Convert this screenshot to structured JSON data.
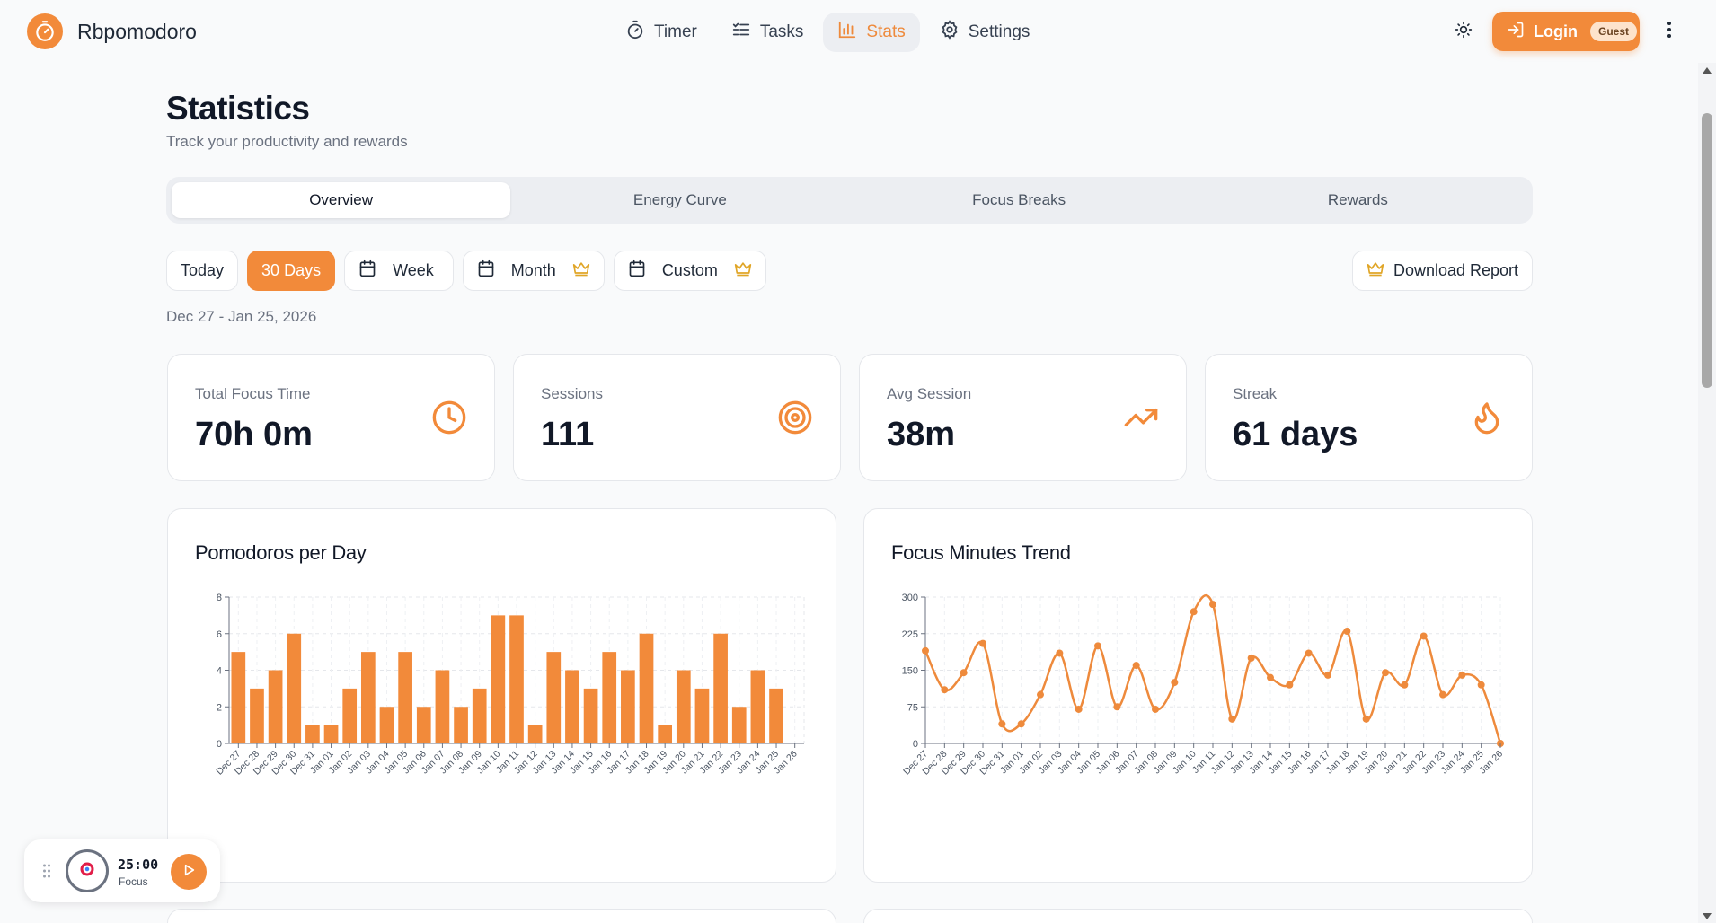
{
  "app": {
    "name": "Rbpomodoro"
  },
  "nav": {
    "items": [
      {
        "label": "Timer",
        "icon": "stopwatch-icon",
        "active": false
      },
      {
        "label": "Tasks",
        "icon": "list-check-icon",
        "active": false
      },
      {
        "label": "Stats",
        "icon": "bar-chart-icon",
        "active": true
      },
      {
        "label": "Settings",
        "icon": "gear-icon",
        "active": false
      }
    ],
    "login_label": "Login",
    "guest_badge": "Guest"
  },
  "page": {
    "title": "Statistics",
    "subtitle": "Track your productivity and rewards"
  },
  "tabs": [
    {
      "label": "Overview",
      "active": true
    },
    {
      "label": "Energy Curve",
      "active": false
    },
    {
      "label": "Focus Breaks",
      "active": false
    },
    {
      "label": "Rewards",
      "active": false
    }
  ],
  "ranges": {
    "today": "Today",
    "thirty_days": "30 Days",
    "week": "Week",
    "month": "Month",
    "custom": "Custom",
    "selected": "30 Days"
  },
  "download_label": "Download Report",
  "date_range": "Dec 27 - Jan 25, 2026",
  "stats": [
    {
      "label": "Total Focus Time",
      "value": "70h 0m",
      "icon": "clock-icon"
    },
    {
      "label": "Sessions",
      "value": "111",
      "icon": "target-icon"
    },
    {
      "label": "Avg Session",
      "value": "38m",
      "icon": "trending-up-icon"
    },
    {
      "label": "Streak",
      "value": "61 days",
      "icon": "flame-icon"
    }
  ],
  "colors": {
    "accent": "#f28a3a",
    "accent_light": "#fde3cc"
  },
  "mini_player": {
    "time": "25:00",
    "label": "Focus"
  },
  "chart_data": [
    {
      "type": "bar",
      "title": "Pomodoros per Day",
      "categories": [
        "Dec 27",
        "Dec 28",
        "Dec 29",
        "Dec 30",
        "Dec 31",
        "Jan 01",
        "Jan 02",
        "Jan 03",
        "Jan 04",
        "Jan 05",
        "Jan 06",
        "Jan 07",
        "Jan 08",
        "Jan 09",
        "Jan 10",
        "Jan 11",
        "Jan 12",
        "Jan 13",
        "Jan 14",
        "Jan 15",
        "Jan 16",
        "Jan 17",
        "Jan 18",
        "Jan 19",
        "Jan 20",
        "Jan 21",
        "Jan 22",
        "Jan 23",
        "Jan 24",
        "Jan 25",
        "Jan 26"
      ],
      "values": [
        5,
        3,
        4,
        6,
        1,
        1,
        3,
        5,
        2,
        5,
        2,
        4,
        2,
        3,
        7,
        7,
        1,
        5,
        4,
        3,
        5,
        4,
        6,
        1,
        4,
        3,
        6,
        2,
        4,
        3,
        0
      ],
      "yticks": [
        0,
        2,
        4,
        6,
        8
      ],
      "ylim": [
        0,
        8
      ],
      "grid": true
    },
    {
      "type": "line",
      "title": "Focus Minutes Trend",
      "categories": [
        "Dec 27",
        "Dec 28",
        "Dec 29",
        "Dec 30",
        "Dec 31",
        "Jan 01",
        "Jan 02",
        "Jan 03",
        "Jan 04",
        "Jan 05",
        "Jan 06",
        "Jan 07",
        "Jan 08",
        "Jan 09",
        "Jan 10",
        "Jan 11",
        "Jan 12",
        "Jan 13",
        "Jan 14",
        "Jan 15",
        "Jan 16",
        "Jan 17",
        "Jan 18",
        "Jan 19",
        "Jan 20",
        "Jan 21",
        "Jan 22",
        "Jan 23",
        "Jan 24",
        "Jan 25",
        "Jan 26"
      ],
      "values": [
        190,
        110,
        145,
        205,
        40,
        40,
        100,
        185,
        70,
        200,
        75,
        160,
        70,
        125,
        270,
        285,
        50,
        175,
        135,
        120,
        185,
        140,
        230,
        50,
        145,
        120,
        220,
        100,
        140,
        120,
        0
      ],
      "yticks": [
        0,
        75,
        150,
        225,
        300
      ],
      "ylim": [
        0,
        300
      ],
      "grid": true
    }
  ]
}
